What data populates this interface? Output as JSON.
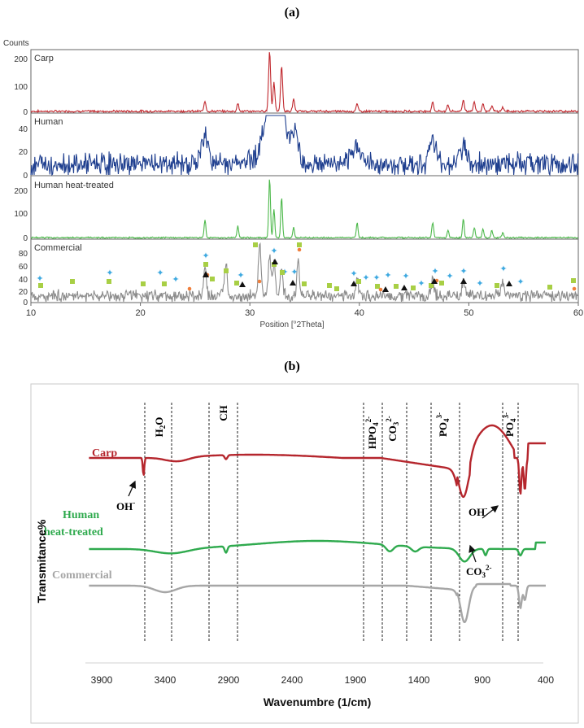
{
  "panel_a": {
    "label": "(a)",
    "y_axis_unit": "Counts",
    "x_label": "Position [°2Theta]",
    "x_ticks": [
      "10",
      "20",
      "30",
      "40",
      "50",
      "60"
    ],
    "tracks": [
      {
        "name": "Carp",
        "color": "#c0272d",
        "yticks": [
          "0",
          "100",
          "200"
        ],
        "ymax": 230
      },
      {
        "name": "Human",
        "color": "#1f3f8f",
        "yticks": [
          "0",
          "20",
          "40"
        ],
        "ymax": 45
      },
      {
        "name": "Human heat-treated",
        "color": "#4cb84a",
        "yticks": [
          "0",
          "100",
          "200"
        ],
        "ymax": 235
      },
      {
        "name": "Commercial",
        "color": "#8c8c8c",
        "yticks": [
          "0",
          "20",
          "40",
          "60",
          "80"
        ],
        "ymax": 90
      }
    ]
  },
  "panel_b": {
    "label": "(b)",
    "x_label": "Wavenumbre (1/cm)",
    "y_label": "Transmitance%",
    "x_ticks": [
      "3900",
      "3400",
      "2900",
      "2400",
      "1900",
      "1400",
      "900",
      "400"
    ],
    "band_labels": [
      "H2O",
      "CH",
      "HPO42-",
      "CO32-",
      "PO43-",
      "PO43-"
    ],
    "series_labels": [
      {
        "text": "Carp",
        "color": "#b5262d"
      },
      {
        "text": "Human",
        "color": "#2faa4e"
      },
      {
        "text": "heat-treated",
        "color": "#2faa4e"
      },
      {
        "text": "Commercial",
        "color": "#a6a6a6"
      }
    ],
    "annotations": [
      "OH-",
      "OH-",
      "CO32-"
    ]
  },
  "chart_data": [
    {
      "type": "line",
      "title": "(a)",
      "xlabel": "Position [°2Theta]",
      "ylabel": "Counts",
      "xlim": [
        10,
        60
      ],
      "series": [
        {
          "name": "Carp",
          "ylim": [
            0,
            230
          ],
          "peaks_2theta": [
            25.9,
            28.9,
            31.8,
            32.2,
            32.9,
            34.0,
            39.8,
            46.7,
            48.1,
            49.5,
            50.5,
            51.3,
            52.1,
            53.1
          ],
          "peak_counts": [
            40,
            30,
            230,
            110,
            175,
            45,
            28,
            35,
            25,
            45,
            35,
            30,
            20,
            15
          ]
        },
        {
          "name": "Human",
          "ylim": [
            0,
            45
          ],
          "peaks_2theta": [
            25.9,
            31.8,
            32.2,
            32.9,
            34.1,
            39.8,
            46.7,
            49.5
          ],
          "peak_counts": [
            20,
            40,
            38,
            30,
            22,
            15,
            15,
            12
          ]
        },
        {
          "name": "Human heat-treated",
          "ylim": [
            0,
            235
          ],
          "peaks_2theta": [
            25.9,
            28.9,
            31.8,
            32.2,
            32.9,
            34.0,
            39.8,
            46.7,
            48.1,
            49.5,
            50.5,
            51.3,
            52.1,
            53.1
          ],
          "peak_counts": [
            70,
            45,
            235,
            110,
            160,
            40,
            60,
            60,
            30,
            75,
            40,
            35,
            30,
            20
          ]
        },
        {
          "name": "Commercial",
          "ylim": [
            0,
            90
          ],
          "peaks_2theta": [
            25.9,
            27.8,
            30.9,
            31.8,
            32.2,
            32.9,
            34.4,
            39.8,
            46.7,
            49.5,
            53.1
          ],
          "peak_counts": [
            45,
            50,
            80,
            60,
            50,
            45,
            60,
            30,
            25,
            25,
            20
          ]
        }
      ]
    },
    {
      "type": "line",
      "title": "(b)",
      "xlabel": "Wavenumbre (1/cm)",
      "ylabel": "Transmitance%",
      "xlim": [
        4000,
        400
      ],
      "series": [
        {
          "name": "Carp",
          "bands_cm": [
            3570,
            2920,
            1040,
            600,
            565
          ],
          "band_types": [
            "OH-",
            "CH",
            "PO43-",
            "OH-",
            "PO43-"
          ]
        },
        {
          "name": "Human heat-treated",
          "bands_cm": [
            2920,
            1630,
            1430,
            1040,
            875,
            600
          ],
          "band_types": [
            "CH",
            "HPO42-",
            "CO32-",
            "PO43-",
            "CO32-",
            "PO43-"
          ]
        },
        {
          "name": "Commercial",
          "bands_cm": [
            1040,
            600,
            565
          ],
          "band_types": [
            "PO43-",
            "PO43-",
            "PO43-"
          ]
        }
      ],
      "reference_lines_cm": [
        3540,
        3320,
        3020,
        2810,
        1780,
        1610,
        1410,
        1205,
        970,
        645,
        525
      ]
    }
  ]
}
